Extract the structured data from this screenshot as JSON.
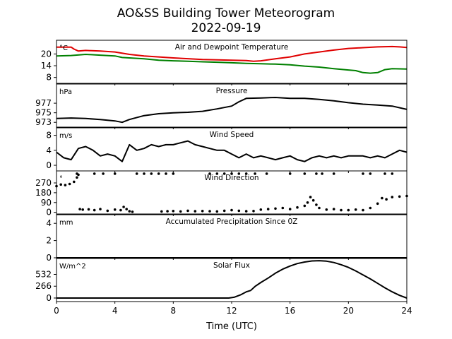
{
  "figure": {
    "title_line1": "AO&SS Building Tower Meteorogram",
    "title_line2": "2022-09-19",
    "xlabel": "Time (UTC)",
    "xticks": [
      0,
      4,
      8,
      12,
      16,
      20,
      24
    ],
    "xlim": [
      0,
      24
    ]
  },
  "chart_data": [
    {
      "type": "line",
      "title": "Air and Dewpoint Temperature",
      "unit": "°C",
      "ylim": [
        5,
        27
      ],
      "yticks": [
        8,
        14,
        20
      ],
      "series": [
        {
          "color": "#e00000",
          "x": [
            0,
            1.0,
            1.2,
            1.5,
            2,
            3,
            4,
            5,
            6,
            7,
            8,
            9,
            10,
            11,
            12,
            13,
            13.5,
            14,
            15,
            16,
            17,
            18,
            19,
            20,
            21,
            22,
            23,
            23.5,
            24
          ],
          "values": [
            23.5,
            23.5,
            22.5,
            21.5,
            21.8,
            21.5,
            21,
            19.8,
            19,
            18.5,
            18,
            17.6,
            17.2,
            17,
            16.8,
            16.6,
            16.3,
            16.5,
            17.5,
            18.5,
            20,
            21,
            22,
            22.8,
            23.2,
            23.6,
            23.8,
            23.6,
            23.3
          ]
        },
        {
          "color": "#008000",
          "x": [
            0,
            1,
            2,
            3,
            4,
            4.5,
            5,
            6,
            7,
            8,
            9,
            10,
            11,
            12,
            13,
            14,
            15,
            16,
            17,
            18,
            19,
            20,
            20.5,
            21,
            21.5,
            22,
            22.5,
            23,
            24
          ],
          "values": [
            19,
            19.2,
            19.8,
            19.4,
            19,
            18.2,
            18,
            17.5,
            16.8,
            16.5,
            16.3,
            16,
            15.8,
            15.5,
            15.2,
            15,
            14.8,
            14.5,
            13.8,
            13.3,
            12.5,
            11.8,
            11.5,
            10.5,
            10.2,
            10.5,
            12,
            12.5,
            12.3
          ]
        }
      ]
    },
    {
      "type": "line",
      "title": "Pressure",
      "unit": "hPa",
      "ylim": [
        972,
        981
      ],
      "yticks": [
        973,
        975,
        977
      ],
      "series": [
        {
          "color": "#000000",
          "x": [
            0,
            1,
            2,
            3,
            4,
            4.5,
            5,
            6,
            7,
            8,
            9,
            10,
            11,
            12,
            12.5,
            13,
            14,
            15,
            16,
            17,
            18,
            19,
            20,
            21,
            22,
            23,
            24
          ],
          "values": [
            973.8,
            973.9,
            973.8,
            973.6,
            973.3,
            973.0,
            973.6,
            974.4,
            974.8,
            975.0,
            975.1,
            975.3,
            975.8,
            976.4,
            977.3,
            978.0,
            978.1,
            978.2,
            978.0,
            978.0,
            977.8,
            977.5,
            977.1,
            976.8,
            976.6,
            976.4,
            975.7
          ]
        }
      ]
    },
    {
      "type": "line",
      "title": "Wind Speed",
      "unit": "m/s",
      "ylim": [
        -1.5,
        10
      ],
      "yticks": [
        0,
        4,
        8
      ],
      "series": [
        {
          "color": "#000000",
          "x": [
            0,
            0.5,
            1,
            1.5,
            2,
            2.5,
            3,
            3.5,
            4,
            4.5,
            5,
            5.5,
            6,
            6.5,
            7,
            7.5,
            8,
            8.5,
            9,
            9.5,
            10,
            10.5,
            11,
            11.5,
            12,
            12.5,
            13,
            13.5,
            14,
            14.5,
            15,
            15.5,
            16,
            16.5,
            17,
            17.5,
            18,
            18.5,
            19,
            19.5,
            20,
            20.5,
            21,
            21.5,
            22,
            22.5,
            23,
            23.5,
            24
          ],
          "values": [
            3.5,
            2,
            1.5,
            4.5,
            5,
            4,
            2.5,
            3,
            2.5,
            1,
            5.5,
            4,
            4.5,
            5.5,
            5,
            5.5,
            5.5,
            6,
            6.5,
            5.5,
            5,
            4.5,
            4,
            4,
            3,
            2,
            3,
            2,
            2.5,
            2,
            1.5,
            2,
            2.5,
            1.5,
            1,
            2,
            2.5,
            2,
            2.5,
            2,
            2.5,
            2.5,
            2.5,
            2,
            2.5,
            2,
            3,
            4,
            3.5
          ]
        }
      ]
    },
    {
      "type": "scatter",
      "title": "Wind Direction",
      "unit": "°",
      "ylim": [
        -15,
        380
      ],
      "yticks": [
        0,
        90,
        180,
        270
      ],
      "series": [
        {
          "color": "#000000",
          "x": [
            0,
            0.3,
            0.6,
            0.9,
            1.2,
            1.4,
            1.5,
            1.6,
            1.8,
            2.2,
            2.6,
            3.0,
            3.5,
            4.0,
            4.4,
            4.6,
            4.8,
            5.0,
            5.2,
            7.2,
            7.6,
            8.0,
            8.5,
            9.0,
            9.5,
            10.0,
            10.5,
            11.0,
            11.5,
            12.0,
            12.5,
            13.0,
            13.5,
            14.0,
            14.5,
            15.0,
            15.5,
            16.0,
            16.5,
            17.0,
            17.2,
            17.4,
            17.6,
            17.8,
            18.0,
            18.5,
            19.0,
            19.5,
            20.0,
            20.5,
            21.0,
            21.5,
            22.0,
            22.3,
            22.6,
            23.0,
            23.5,
            24.0,
            1.4,
            2.6,
            3.2,
            4.0,
            5.5,
            6.0,
            6.5,
            7.0,
            7.5,
            8.0,
            10.5,
            11.0,
            11.5,
            12.0,
            12.5,
            13.0,
            13.6,
            14.4,
            16.0,
            17.0,
            17.8,
            18.2,
            19.0,
            21.0,
            21.5,
            22.5,
            23.0
          ],
          "values": [
            240,
            255,
            250,
            260,
            280,
            320,
            345,
            30,
            25,
            28,
            20,
            30,
            15,
            25,
            20,
            50,
            30,
            10,
            5,
            8,
            10,
            12,
            8,
            15,
            10,
            12,
            10,
            8,
            15,
            20,
            15,
            10,
            12,
            25,
            30,
            35,
            40,
            30,
            45,
            60,
            90,
            140,
            110,
            70,
            40,
            25,
            30,
            20,
            20,
            25,
            20,
            40,
            80,
            130,
            120,
            140,
            145,
            150,
            355,
            355,
            355,
            355,
            355,
            355,
            355,
            355,
            355,
            355,
            355,
            355,
            355,
            355,
            355,
            355,
            355,
            355,
            355,
            355,
            355,
            355,
            355,
            355,
            355,
            355,
            355
          ]
        }
      ]
    },
    {
      "type": "line",
      "title": "Accumulated Precipitation Since 0Z",
      "unit": "mm",
      "ylim": [
        0,
        5
      ],
      "yticks": [
        0,
        2,
        4
      ],
      "series": [
        {
          "color": "#000000",
          "x": [
            0,
            24
          ],
          "values": [
            0,
            0
          ]
        }
      ]
    },
    {
      "type": "line",
      "title": "Solar Flux",
      "unit": "W/m^2",
      "ylim": [
        -80,
        890
      ],
      "yticks": [
        0,
        266,
        532
      ],
      "series": [
        {
          "color": "#000000",
          "x": [
            0,
            11.8,
            12.2,
            12.6,
            13,
            13.3,
            13.6,
            14,
            14.5,
            15,
            15.5,
            16,
            16.5,
            17,
            17.5,
            18,
            18.5,
            19,
            19.5,
            20,
            20.5,
            21,
            21.5,
            22,
            22.5,
            23,
            23.5,
            24
          ],
          "values": [
            0,
            0,
            20,
            70,
            140,
            170,
            260,
            350,
            450,
            560,
            650,
            720,
            775,
            810,
            835,
            840,
            830,
            800,
            750,
            690,
            610,
            520,
            430,
            330,
            230,
            140,
            60,
            0
          ]
        }
      ]
    }
  ]
}
